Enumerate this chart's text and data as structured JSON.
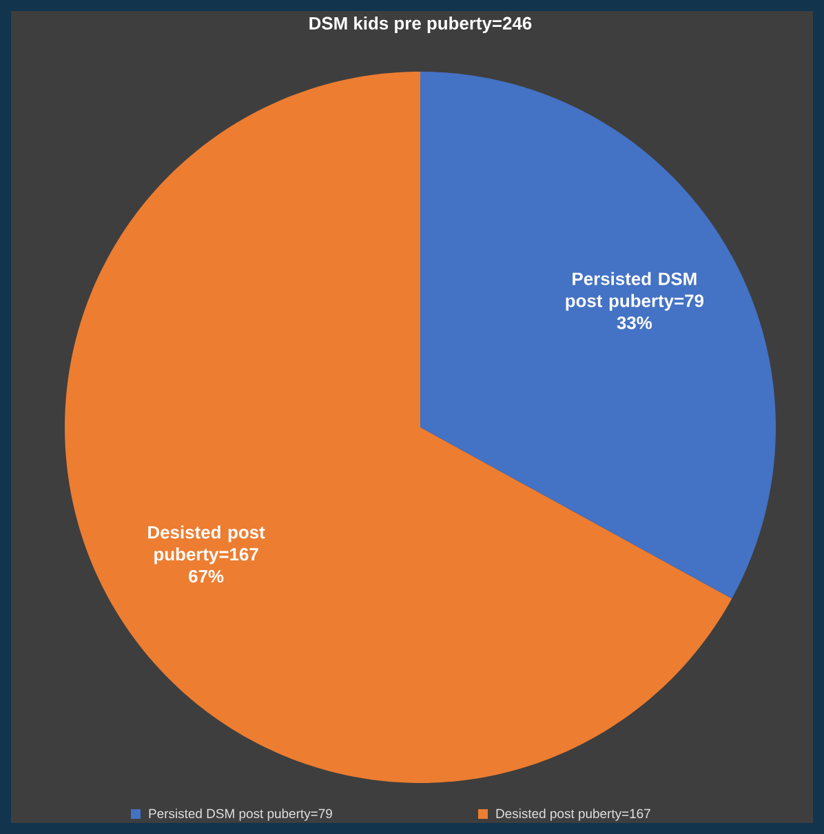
{
  "chart_data": {
    "type": "pie",
    "title": "DSM kids pre puberty=246",
    "categories": [
      "Persisted DSM post puberty=79",
      "Desisted post puberty=167"
    ],
    "values": [
      33,
      67
    ],
    "colors": [
      "#4472c4",
      "#ed7d31"
    ],
    "value_labels": [
      "33%",
      "67%"
    ],
    "legend": "bottom"
  }
}
